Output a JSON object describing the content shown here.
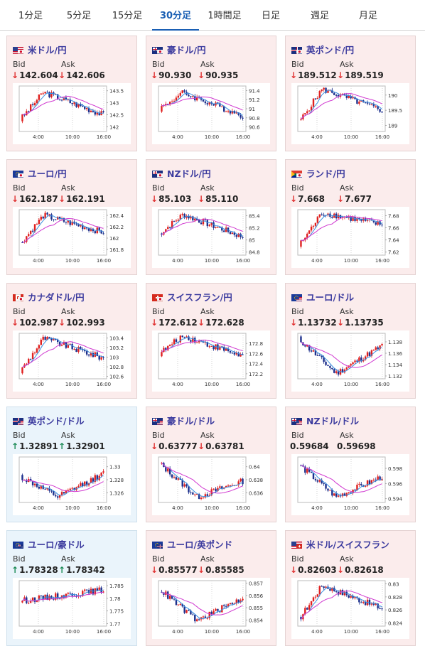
{
  "tabs": [
    "1分足",
    "5分足",
    "15分足",
    "30分足",
    "1時間足",
    "日足",
    "週足",
    "月足"
  ],
  "active_tab_index": 3,
  "labels": {
    "bid": "Bid",
    "ask": "Ask"
  },
  "time_labels": [
    "4:00",
    "10:00",
    "16:00"
  ],
  "colors": {
    "up_candle": "#e0201f",
    "down_candle": "#1c2f8c",
    "moving_average": "#d038d0",
    "signal_line": "#3a8fe0"
  },
  "pairs": [
    {
      "name": "米ドル/円",
      "flags": [
        "us",
        "jp"
      ],
      "direction": "down",
      "bid": "142.604",
      "ask": "142.606",
      "chart_data": {
        "type": "candlestick",
        "y_ticks": [
          "143.5",
          "143",
          "142.5",
          "142"
        ],
        "ylim": [
          141.8,
          143.7
        ],
        "start": 142.3,
        "peak": 143.45,
        "end": 142.5,
        "trend": "peak-mid"
      }
    },
    {
      "name": "豪ドル/円",
      "flags": [
        "au",
        "jp"
      ],
      "direction": "down",
      "bid": "90.930",
      "ask": "90.935",
      "chart_data": {
        "type": "candlestick",
        "y_ticks": [
          "91.4",
          "91.2",
          "91",
          "90.8",
          "90.6"
        ],
        "ylim": [
          90.5,
          91.5
        ],
        "start": 91.0,
        "peak": 91.35,
        "end": 90.85,
        "trend": "peak-mid"
      }
    },
    {
      "name": "英ポンド/円",
      "flags": [
        "gb",
        "jp"
      ],
      "direction": "down",
      "bid": "189.512",
      "ask": "189.519",
      "chart_data": {
        "type": "candlestick",
        "y_ticks": [
          "190",
          "189.5",
          "189"
        ],
        "ylim": [
          188.8,
          190.3
        ],
        "start": 189.1,
        "peak": 190.2,
        "end": 189.5,
        "trend": "peak-mid"
      }
    },
    {
      "name": "ユーロ/円",
      "flags": [
        "eu",
        "jp"
      ],
      "direction": "down",
      "bid": "162.187",
      "ask": "162.191",
      "chart_data": {
        "type": "candlestick",
        "y_ticks": [
          "162.4",
          "162.2",
          "162",
          "161.8"
        ],
        "ylim": [
          161.7,
          162.5
        ],
        "start": 161.9,
        "peak": 162.4,
        "end": 162.1,
        "trend": "peak-mid"
      }
    },
    {
      "name": "NZドル/円",
      "flags": [
        "nz",
        "jp"
      ],
      "direction": "down",
      "bid": "85.103",
      "ask": "85.110",
      "chart_data": {
        "type": "candlestick",
        "y_ticks": [
          "85.4",
          "85.2",
          "85",
          "84.8"
        ],
        "ylim": [
          84.75,
          85.5
        ],
        "start": 85.1,
        "peak": 85.42,
        "end": 85.05,
        "trend": "peak-mid"
      }
    },
    {
      "name": "ランド/円",
      "flags": [
        "za",
        "jp"
      ],
      "direction": "down",
      "bid": "7.668",
      "ask": "7.677",
      "chart_data": {
        "type": "candlestick",
        "y_ticks": [
          "7.68",
          "7.66",
          "7.64",
          "7.62"
        ],
        "ylim": [
          7.615,
          7.69
        ],
        "start": 7.63,
        "peak": 7.685,
        "end": 7.665,
        "trend": "peak-mid"
      }
    },
    {
      "name": "カナダドル/円",
      "flags": [
        "ca",
        "jp"
      ],
      "direction": "down",
      "bid": "102.987",
      "ask": "102.993",
      "chart_data": {
        "type": "candlestick",
        "y_ticks": [
          "103.4",
          "103.2",
          "103",
          "102.8",
          "102.6"
        ],
        "ylim": [
          102.55,
          103.5
        ],
        "start": 102.7,
        "peak": 103.4,
        "end": 102.98,
        "trend": "peak-mid"
      }
    },
    {
      "name": "スイスフラン/円",
      "flags": [
        "ch",
        "jp"
      ],
      "direction": "down",
      "bid": "172.612",
      "ask": "172.628",
      "chart_data": {
        "type": "candlestick",
        "y_ticks": [
          "172.8",
          "172.6",
          "172.4",
          "172.2"
        ],
        "ylim": [
          172.1,
          173.0
        ],
        "start": 172.6,
        "peak": 172.95,
        "end": 172.55,
        "trend": "peak-mid"
      }
    },
    {
      "name": "ユーロ/ドル",
      "flags": [
        "eu",
        "us"
      ],
      "direction": "down",
      "bid": "1.13732",
      "ask": "1.13735",
      "chart_data": {
        "type": "candlestick",
        "y_ticks": [
          "1.138",
          "1.136",
          "1.134",
          "1.132"
        ],
        "ylim": [
          1.1315,
          1.1395
        ],
        "start": 1.1385,
        "peak": 1.1385,
        "end": 1.1373,
        "trend": "dip"
      }
    },
    {
      "name": "英ポンド/ドル",
      "flags": [
        "gb",
        "us"
      ],
      "direction": "up",
      "bid": "1.32891",
      "ask": "1.32901",
      "chart_data": {
        "type": "candlestick",
        "y_ticks": [
          "1.33",
          "1.328",
          "1.326"
        ],
        "ylim": [
          1.3245,
          1.3315
        ],
        "start": 1.3285,
        "peak": 1.3285,
        "end": 1.3289,
        "trend": "dip"
      }
    },
    {
      "name": "豪ドル/ドル",
      "flags": [
        "au",
        "us"
      ],
      "direction": "down",
      "bid": "0.63777",
      "ask": "0.63781",
      "chart_data": {
        "type": "candlestick",
        "y_ticks": [
          "0.64",
          "0.638",
          "0.636"
        ],
        "ylim": [
          0.6345,
          0.6415
        ],
        "start": 0.6405,
        "peak": 0.6405,
        "end": 0.6378,
        "trend": "dip"
      }
    },
    {
      "name": "NZドル/ドル",
      "flags": [
        "nz",
        "us"
      ],
      "direction": "none",
      "bid": "0.59684",
      "ask": "0.59698",
      "chart_data": {
        "type": "candlestick",
        "y_ticks": [
          "0.598",
          "0.596",
          "0.594"
        ],
        "ylim": [
          0.5935,
          0.5995
        ],
        "start": 0.5985,
        "peak": 0.5985,
        "end": 0.5969,
        "trend": "dip"
      }
    },
    {
      "name": "ユーロ/豪ドル",
      "flags": [
        "eu",
        "au"
      ],
      "direction": "up",
      "bid": "1.78328",
      "ask": "1.78342",
      "chart_data": {
        "type": "candlestick",
        "y_ticks": [
          "1.785",
          "1.78",
          "1.775",
          "1.77"
        ],
        "ylim": [
          1.769,
          1.787
        ],
        "start": 1.779,
        "peak": 1.785,
        "end": 1.7833,
        "trend": "rise"
      }
    },
    {
      "name": "ユーロ/英ポンド",
      "flags": [
        "eu",
        "gb"
      ],
      "direction": "down",
      "bid": "0.85577",
      "ask": "0.85585",
      "chart_data": {
        "type": "candlestick",
        "y_ticks": [
          "0.857",
          "0.856",
          "0.855",
          "0.854"
        ],
        "ylim": [
          0.8535,
          0.8572
        ],
        "start": 0.8565,
        "peak": 0.8565,
        "end": 0.8558,
        "trend": "dip"
      }
    },
    {
      "name": "米ドル/スイスフラン",
      "flags": [
        "us",
        "ch"
      ],
      "direction": "down",
      "bid": "0.82603",
      "ask": "0.82618",
      "chart_data": {
        "type": "candlestick",
        "y_ticks": [
          "0.83",
          "0.828",
          "0.826",
          "0.824"
        ],
        "ylim": [
          0.8235,
          0.8305
        ],
        "start": 0.8245,
        "peak": 0.8298,
        "end": 0.8262,
        "trend": "peak-mid"
      }
    }
  ]
}
